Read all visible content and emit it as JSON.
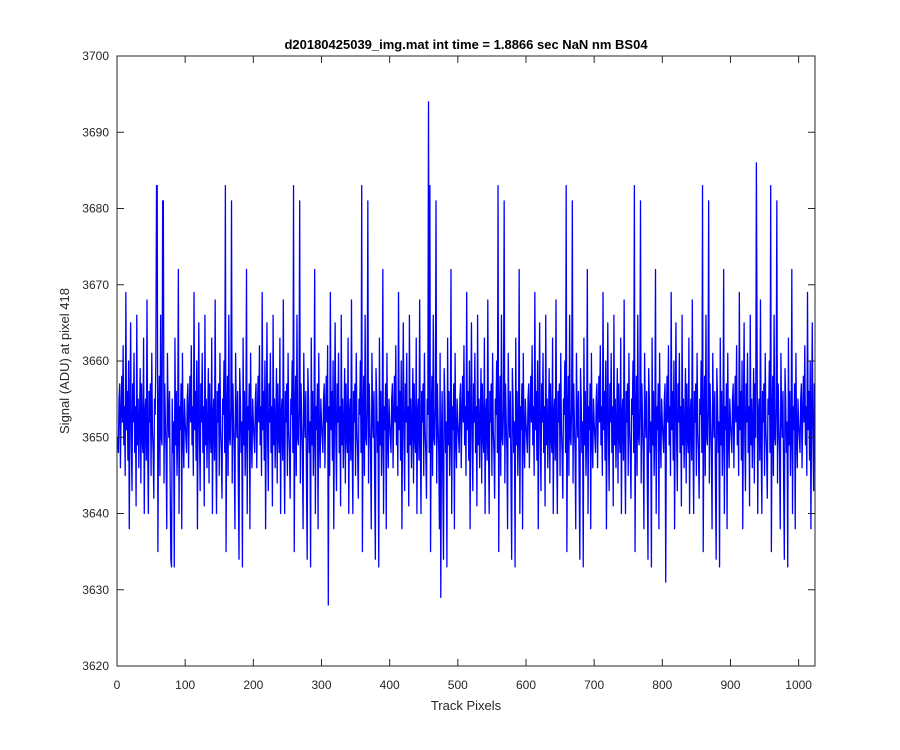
{
  "chart_data": {
    "type": "line",
    "title": "d20180425039_img.mat int time = 1.8866 sec  NaN nm BS04",
    "xlabel": "Track Pixels",
    "ylabel": "Signal (ADU) at pixel 418",
    "xlim": [
      0,
      1024
    ],
    "ylim": [
      3620,
      3700
    ],
    "x_ticks": [
      0,
      100,
      200,
      300,
      400,
      500,
      600,
      700,
      800,
      900,
      1000
    ],
    "y_ticks": [
      3620,
      3630,
      3640,
      3650,
      3660,
      3670,
      3680,
      3690,
      3700
    ],
    "grid": false,
    "box": true,
    "series": [
      {
        "color": "#0000ff",
        "x_start": 1,
        "x_step": 1,
        "baseline": 3652,
        "values": [
          3650,
          3648,
          3655,
          3657,
          3646,
          3653,
          3658,
          3652,
          3662,
          3649,
          3654,
          3645,
          3669,
          3651,
          3656,
          3647,
          3660,
          3638,
          3653,
          3665,
          3650,
          3643,
          3657,
          3652,
          3661,
          3648,
          3654,
          3641,
          3666,
          3649,
          3655,
          3646,
          3652,
          3659,
          3644,
          3657,
          3650,
          3648,
          3663,
          3640,
          3653,
          3655,
          3647,
          3668,
          3649,
          3640,
          3656,
          3652,
          3657,
          3645,
          3661,
          3651,
          3648,
          3642,
          3655,
          3653,
          3660,
          3648,
          3683,
          3635,
          3652,
          3658,
          3645,
          3666,
          3650,
          3649,
          3654,
          3681,
          3644,
          3657,
          3652,
          3648,
          3638,
          3661,
          3653,
          3650,
          3656,
          3644,
          3634,
          3659,
          3655,
          3648,
          3652,
          3633,
          3663,
          3649,
          3656,
          3645,
          3650,
          3672,
          3640,
          3654,
          3651,
          3657,
          3638,
          3661,
          3650,
          3646,
          3655,
          3652
        ],
        "peaks": [
          {
            "x": 58,
            "y": 3683
          },
          {
            "x": 67,
            "y": 3681
          },
          {
            "x": 80,
            "y": 3633
          },
          {
            "x": 310,
            "y": 3628
          },
          {
            "x": 457,
            "y": 3694
          },
          {
            "x": 475,
            "y": 3629
          },
          {
            "x": 805,
            "y": 3631
          },
          {
            "x": 938,
            "y": 3686
          }
        ]
      }
    ]
  }
}
